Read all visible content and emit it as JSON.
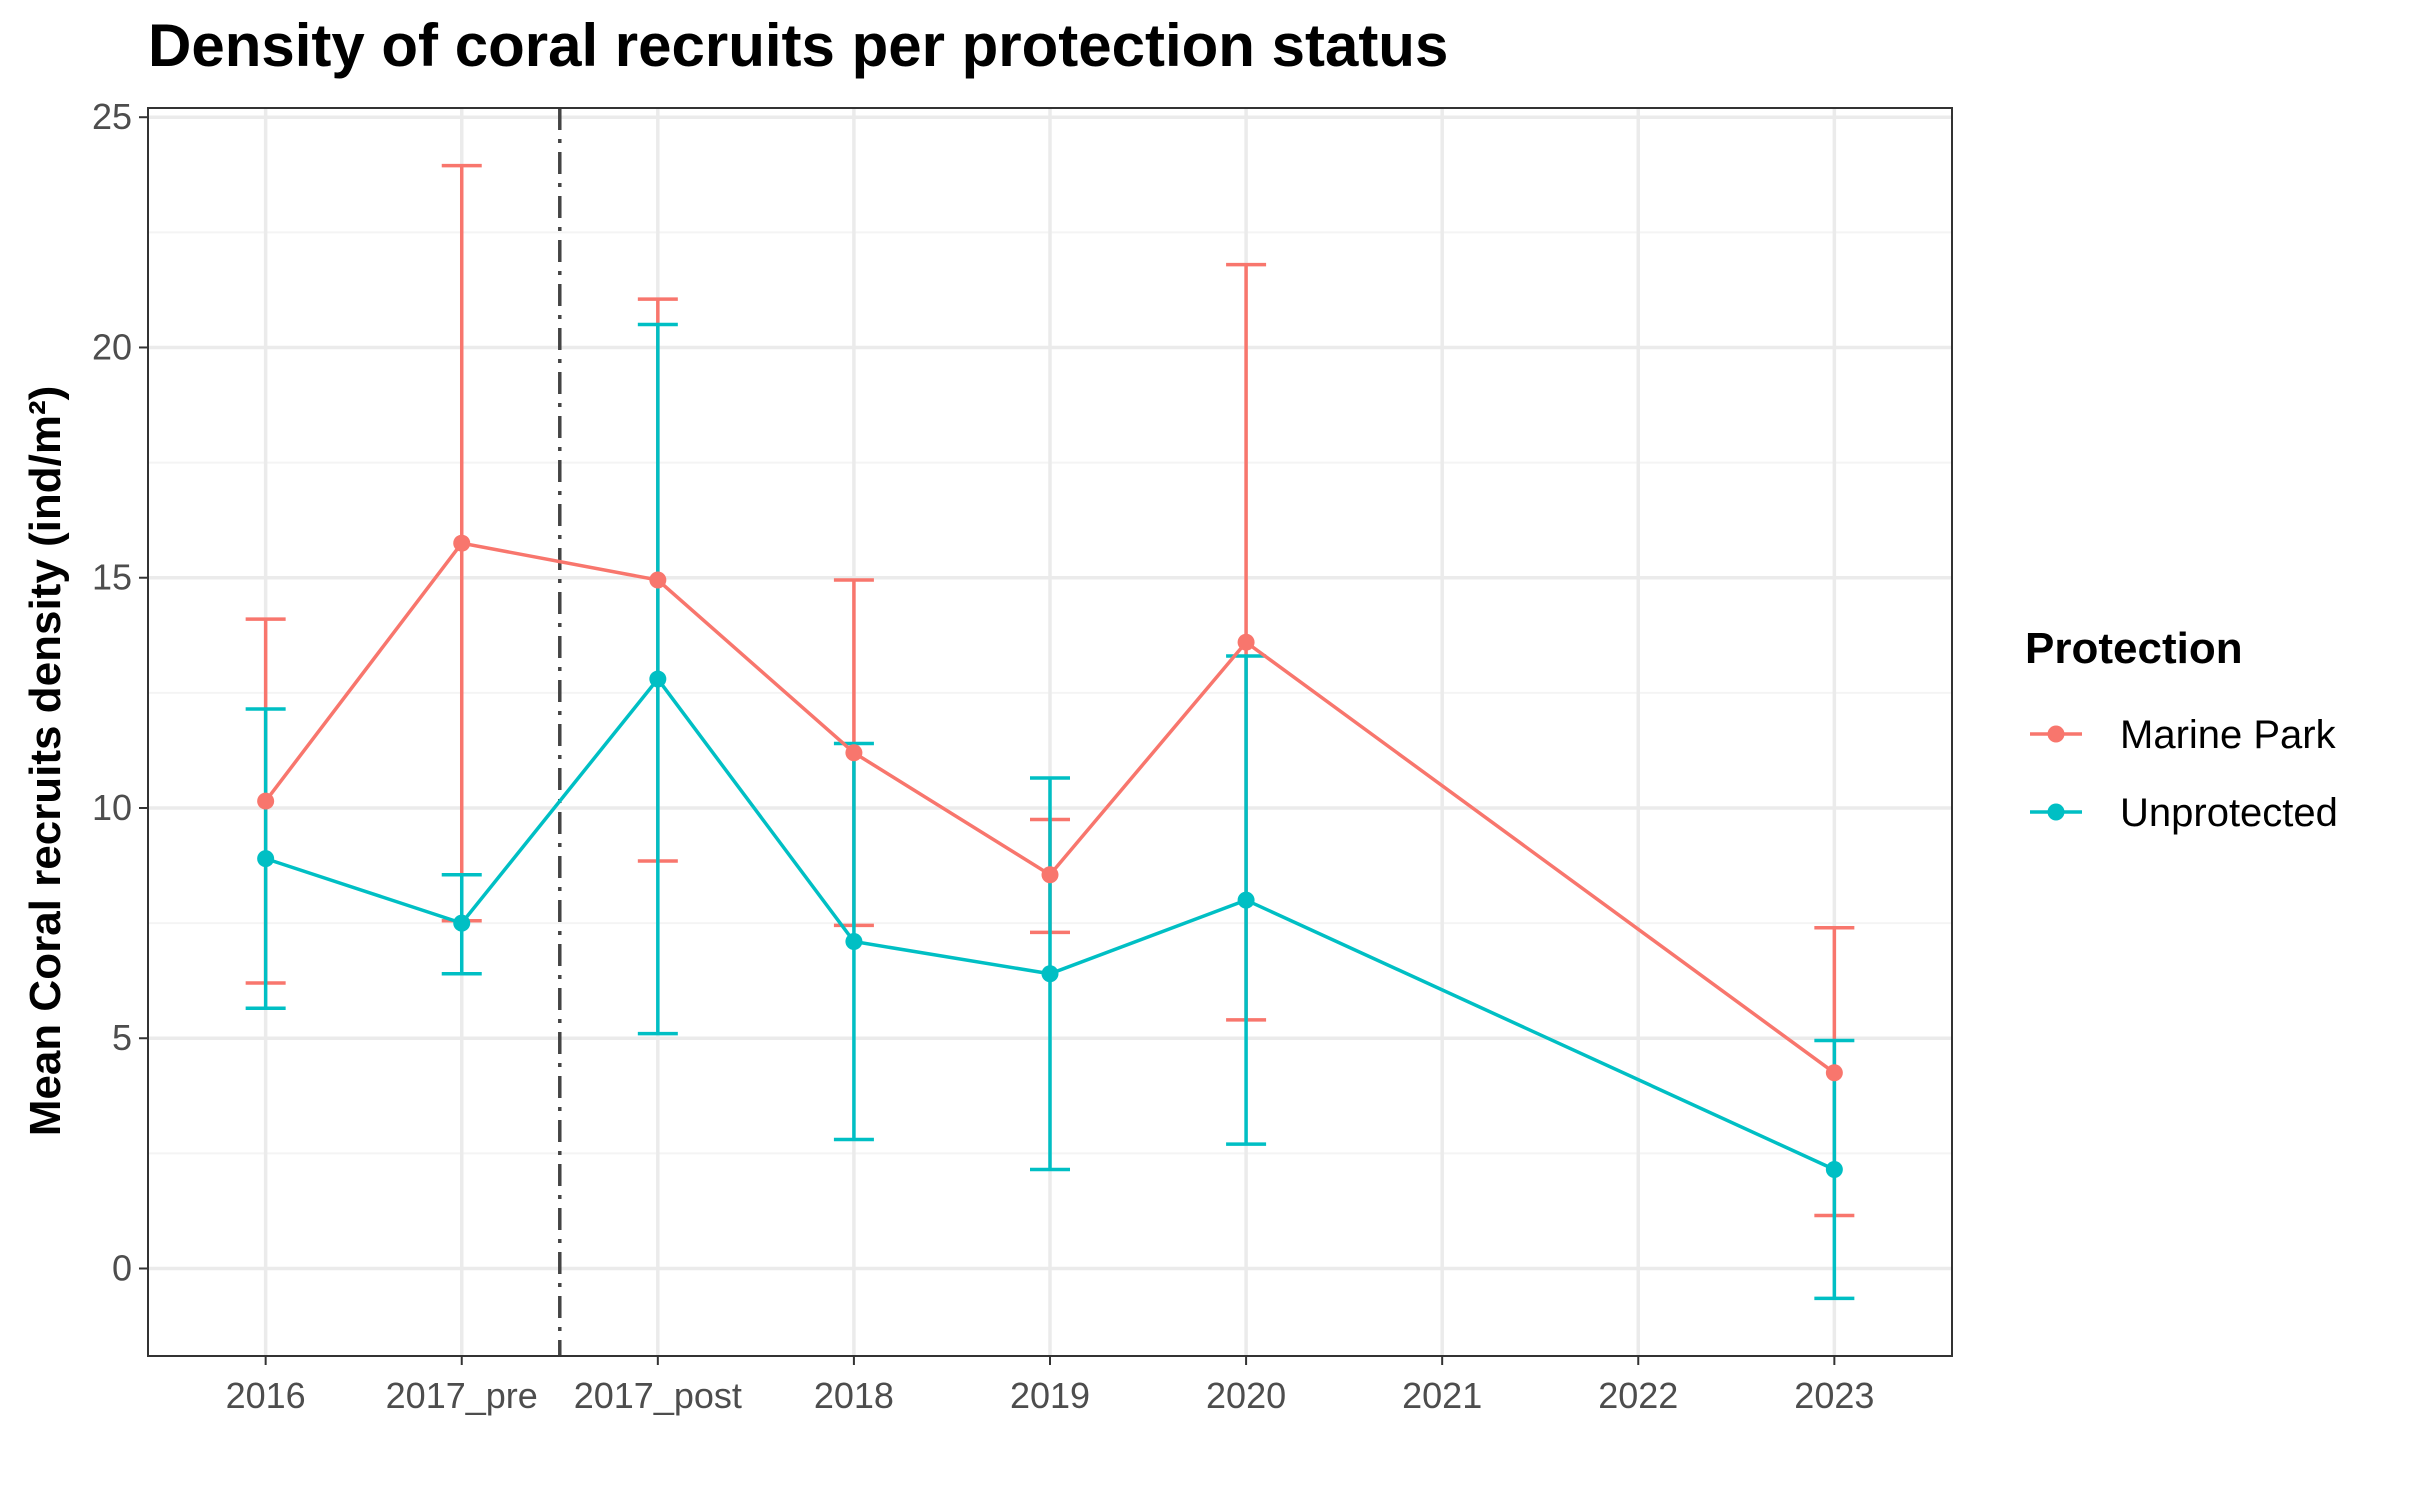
{
  "chart_data": {
    "type": "line",
    "title": "Density of coral recruits per protection status",
    "xlabel": "",
    "ylabel": "Mean Coral recruits density (ind/m²)",
    "categories": [
      "2016",
      "2017_pre",
      "2017_post",
      "2018",
      "2019",
      "2020",
      "2021",
      "2022",
      "2023"
    ],
    "ylim": [
      -1.9,
      25.2
    ],
    "yticks": [
      0,
      5,
      10,
      15,
      20,
      25
    ],
    "grid": true,
    "legend": {
      "title": "Protection",
      "placement": "right"
    },
    "reference_line": {
      "between": [
        "2017_pre",
        "2017_post"
      ],
      "style": "dashdot"
    },
    "series": [
      {
        "name": "Marine Park",
        "color": "#F8766D",
        "points": [
          {
            "x": "2016",
            "y": 10.15,
            "lower": 6.2,
            "upper": 14.1
          },
          {
            "x": "2017_pre",
            "y": 15.75,
            "lower": 7.55,
            "upper": 23.95
          },
          {
            "x": "2017_post",
            "y": 14.95,
            "lower": 8.85,
            "upper": 21.05
          },
          {
            "x": "2018",
            "y": 11.2,
            "lower": 7.45,
            "upper": 14.95
          },
          {
            "x": "2019",
            "y": 8.55,
            "lower": 7.3,
            "upper": 9.75
          },
          {
            "x": "2020",
            "y": 13.6,
            "lower": 5.4,
            "upper": 21.8
          },
          {
            "x": "2023",
            "y": 4.25,
            "lower": 1.15,
            "upper": 7.4
          }
        ]
      },
      {
        "name": "Unprotected",
        "color": "#00BFC4",
        "points": [
          {
            "x": "2016",
            "y": 8.9,
            "lower": 5.65,
            "upper": 12.15
          },
          {
            "x": "2017_pre",
            "y": 7.5,
            "lower": 6.4,
            "upper": 8.55
          },
          {
            "x": "2017_post",
            "y": 12.8,
            "lower": 5.1,
            "upper": 20.5
          },
          {
            "x": "2018",
            "y": 7.1,
            "lower": 2.8,
            "upper": 11.4
          },
          {
            "x": "2019",
            "y": 6.4,
            "lower": 2.15,
            "upper": 10.65
          },
          {
            "x": "2020",
            "y": 8.0,
            "lower": 2.7,
            "upper": 13.3
          },
          {
            "x": "2023",
            "y": 2.15,
            "lower": -0.65,
            "upper": 4.95
          }
        ]
      }
    ]
  }
}
